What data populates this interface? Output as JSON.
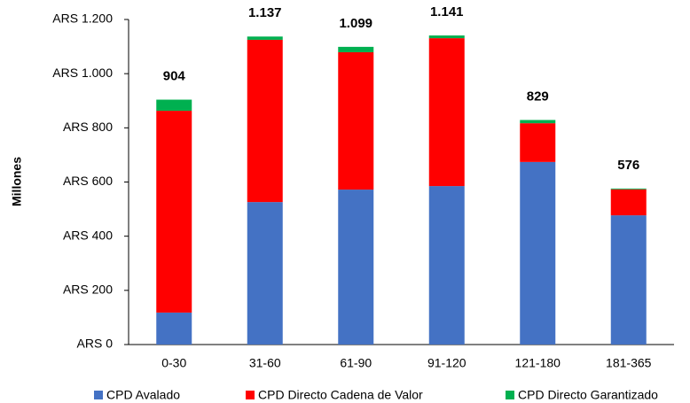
{
  "chart_data": {
    "type": "stacked_bar",
    "y_label": "Millones",
    "categories": [
      "0-30",
      "31-60",
      "61-90",
      "91-120",
      "121-180",
      "181-365"
    ],
    "series": [
      {
        "name": "CPD Avalado",
        "color": "#4472c4",
        "values": [
          118,
          526,
          572,
          585,
          674,
          477
        ]
      },
      {
        "name": "CPD Directo Cadena de Valor",
        "color": "#ff0000",
        "values": [
          745,
          599,
          507,
          546,
          143,
          96
        ]
      },
      {
        "name": "CPD Directo Garantizado",
        "color": "#00b050",
        "values": [
          41,
          12,
          20,
          10,
          12,
          3
        ]
      }
    ],
    "totals": {
      "values": [
        904,
        1137,
        1099,
        1141,
        829,
        576
      ],
      "value_labels": [
        "904",
        "1.137",
        "1.099",
        "1.141",
        "829",
        "576"
      ]
    },
    "ylim": [
      0,
      1200
    ],
    "yticks": [
      {
        "value": 0,
        "label": "ARS 0"
      },
      {
        "value": 200,
        "label": "ARS 200"
      },
      {
        "value": 400,
        "label": "ARS 400"
      },
      {
        "value": 600,
        "label": "ARS 600"
      },
      {
        "value": 800,
        "label": "ARS 800"
      },
      {
        "value": 1000,
        "label": "ARS 1.000"
      },
      {
        "value": 1200,
        "label": "ARS 1.200"
      }
    ],
    "legend": "bottom"
  }
}
